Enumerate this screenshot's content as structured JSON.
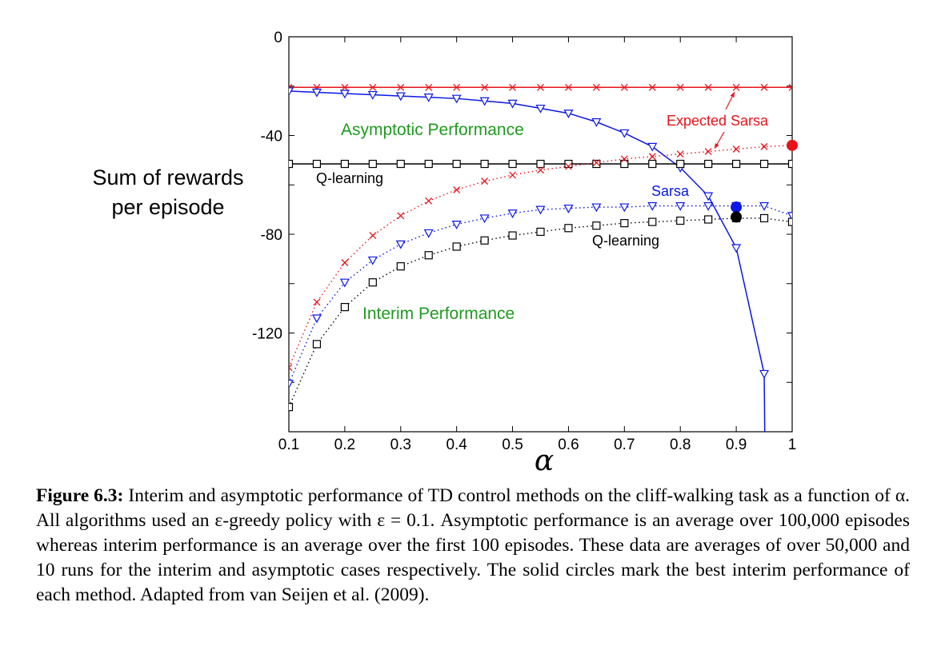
{
  "chart_data": {
    "type": "line",
    "xlabel": "α",
    "ylabel_lines": [
      "Sum of rewards",
      "per episode"
    ],
    "xlim": [
      0.1,
      1.0
    ],
    "ylim": [
      -160,
      0
    ],
    "xticks": [
      "0.1",
      "0.2",
      "0.3",
      "0.4",
      "0.5",
      "0.6",
      "0.7",
      "0.8",
      "0.9",
      "1"
    ],
    "yticks": [
      "0",
      "-40",
      "-80",
      "-120"
    ],
    "grid": false,
    "x": [
      0.1,
      0.15,
      0.2,
      0.25,
      0.3,
      0.35,
      0.4,
      0.45,
      0.5,
      0.55,
      0.6,
      0.65,
      0.7,
      0.75,
      0.8,
      0.85,
      0.9,
      0.95,
      1.0
    ],
    "series": [
      {
        "name": "Expected Sarsa",
        "color": "#e8141b",
        "line": "solid",
        "marker": "x",
        "group": "asymptotic",
        "values": [
          -20.5,
          -20.5,
          -20.5,
          -20.5,
          -20.5,
          -20.5,
          -20.5,
          -20.5,
          -20.5,
          -20.5,
          -20.5,
          -20.5,
          -20.5,
          -20.5,
          -20.5,
          -20.5,
          -20.5,
          -20.5,
          -20.5
        ]
      },
      {
        "name": "Sarsa",
        "color": "#0a17e6",
        "line": "solid",
        "marker": "triangle-down",
        "group": "asymptotic",
        "x": [
          0.1,
          0.15,
          0.2,
          0.25,
          0.3,
          0.35,
          0.4,
          0.45,
          0.5,
          0.55,
          0.6,
          0.65,
          0.7,
          0.75,
          0.8,
          0.85,
          0.9,
          0.95
        ],
        "values": [
          -22,
          -22.5,
          -23,
          -23.5,
          -24,
          -24.5,
          -25,
          -26,
          -27,
          -29,
          -31,
          -34.5,
          -39,
          -44.5,
          -53,
          -64.5,
          -85.5,
          -136.5
        ]
      },
      {
        "name": "Q-learning",
        "color": "#000000",
        "line": "solid",
        "marker": "square",
        "group": "asymptotic",
        "values": [
          -51.5,
          -51.5,
          -51.5,
          -51.5,
          -51.5,
          -51.5,
          -51.5,
          -51.5,
          -51.5,
          -51.5,
          -51.5,
          -51.5,
          -51.5,
          -51.5,
          -51.5,
          -51.5,
          -51.5,
          -51.5,
          -51.5
        ]
      },
      {
        "name": "Expected Sarsa",
        "color": "#e8141b",
        "line": "dotted",
        "marker": "x",
        "group": "interim",
        "values": [
          -134,
          -107.5,
          -91.5,
          -80.5,
          -72.5,
          -66.5,
          -62,
          -58.5,
          -56,
          -54,
          -52.5,
          -51,
          -49.5,
          -48.5,
          -47.5,
          -46.5,
          -45.5,
          -44.5,
          -44
        ]
      },
      {
        "name": "Sarsa",
        "color": "#0a17e6",
        "line": "dotted",
        "marker": "triangle-down",
        "group": "interim",
        "values": [
          -140.5,
          -114,
          -99.5,
          -90.5,
          -84,
          -79.5,
          -76,
          -73.5,
          -71.5,
          -70,
          -69.5,
          -69,
          -69,
          -68.5,
          -68.5,
          -68.5,
          -68.5,
          -68.5,
          -72.5
        ]
      },
      {
        "name": "Q-learning",
        "color": "#000000",
        "line": "dotted",
        "marker": "square",
        "group": "interim",
        "values": [
          -150,
          -124.5,
          -109.5,
          -99.5,
          -93,
          -88.5,
          -85,
          -82.5,
          -80.5,
          -79,
          -77.5,
          -76.5,
          -75.5,
          -75,
          -74.5,
          -74,
          -73.5,
          -73.5,
          -75
        ]
      }
    ],
    "best_points": [
      {
        "name": "Expected Sarsa",
        "x": 1.0,
        "value": -44,
        "color": "#e8141b"
      },
      {
        "name": "Sarsa",
        "x": 0.9,
        "value": -69,
        "color": "#0a17e6"
      },
      {
        "name": "Q-learning",
        "x": 0.9,
        "value": -73,
        "color": "#000000"
      }
    ],
    "annotations": {
      "asymptotic_label": "Asymptotic Performance",
      "interim_label": "Interim Performance",
      "green": "#1f9a1f",
      "expected_sarsa_label": "Expected Sarsa",
      "sarsa_label": "Sarsa",
      "q_learning_asymptotic_label": "Q-learning",
      "q_learning_interim_label": "Q-learning"
    }
  },
  "caption": {
    "label": "Figure 6.3:",
    "text": " Interim and asymptotic performance of TD control methods on the cliff-walking task as a function of α. All algorithms used an ε-greedy policy with ε = 0.1. Asymptotic performance is an average over 100,000 episodes whereas interim performance is an average over the first 100 episodes. These data are averages of over 50,000 and 10 runs for the interim and asymptotic cases respectively. The solid circles mark the best interim performance of each method. Adapted from van Seijen et al. (2009)."
  }
}
